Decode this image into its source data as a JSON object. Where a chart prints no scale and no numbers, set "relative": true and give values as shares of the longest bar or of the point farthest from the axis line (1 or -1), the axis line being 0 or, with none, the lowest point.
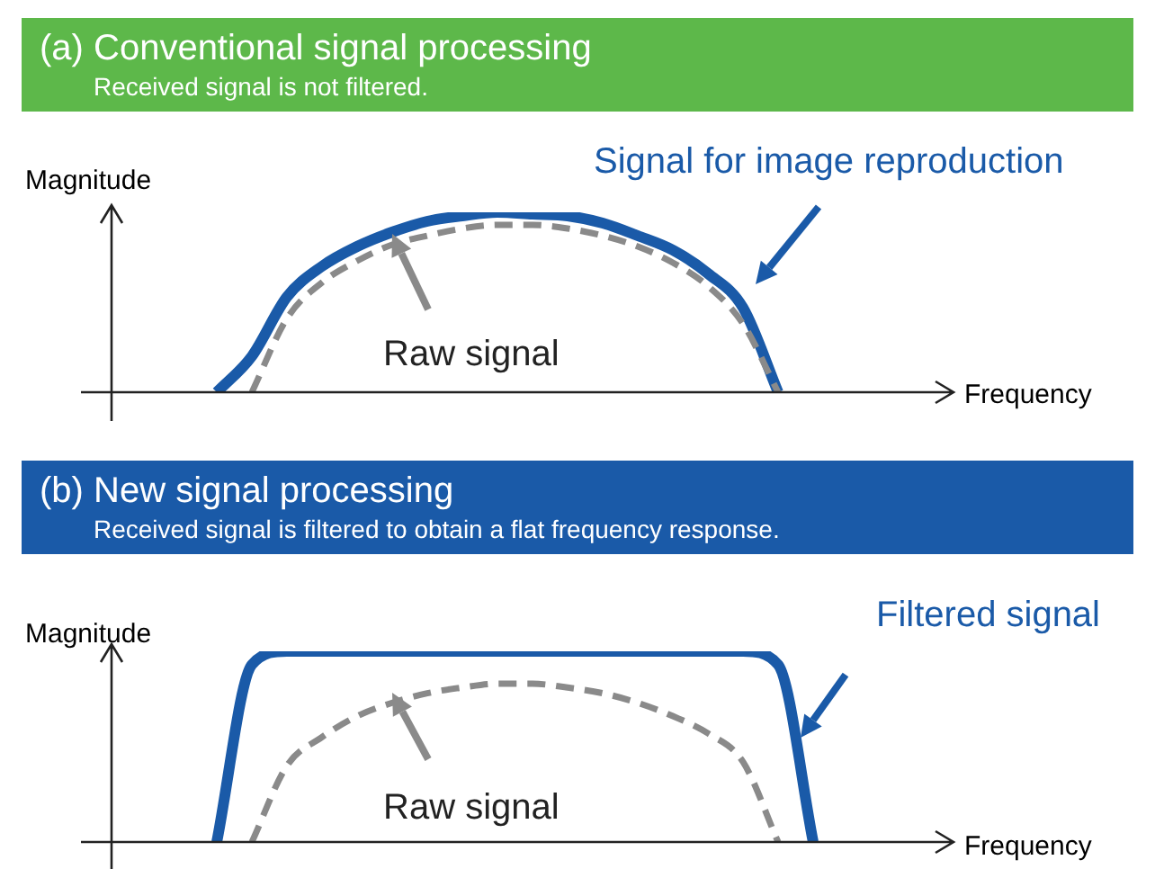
{
  "chart_data": [
    {
      "type": "line",
      "title": "(a) Conventional signal processing",
      "subtitle": "Received signal is not filtered.",
      "xlabel": "Frequency",
      "ylabel": "Magnitude",
      "relative": true,
      "marker": "none",
      "categories": [
        null,
        null,
        null,
        null,
        null,
        null,
        null,
        null,
        null,
        null,
        null,
        null,
        null,
        null,
        null,
        null,
        null,
        null,
        null,
        null,
        null,
        null,
        null,
        null,
        null
      ],
      "series": [
        {
          "name": "Signal for image reproduction",
          "color": "#1a5aa8",
          "line_style": "solid",
          "values": [
            null,
            null,
            null,
            0,
            0.2,
            0.53,
            0.7,
            0.81,
            0.89,
            0.95,
            0.98,
            1,
            0.99,
            0.98,
            0.94,
            0.87,
            0.79,
            0.66,
            0.47,
            0,
            null,
            null,
            null,
            null,
            null
          ]
        },
        {
          "name": "Raw signal",
          "color": "#8a8a8a",
          "line_style": "dashed",
          "values": [
            null,
            null,
            null,
            null,
            0,
            0.41,
            0.61,
            0.73,
            0.82,
            0.87,
            0.91,
            0.93,
            0.93,
            0.91,
            0.87,
            0.81,
            0.72,
            0.59,
            0.38,
            0,
            null,
            null,
            null,
            null,
            null
          ]
        }
      ]
    },
    {
      "type": "line",
      "title": "(b) New signal processing",
      "subtitle": "Received signal is filtered to obtain a flat frequency response.",
      "xlabel": "Frequency",
      "ylabel": "Magnitude",
      "relative": true,
      "marker": "none",
      "categories": [
        null,
        null,
        null,
        null,
        null,
        null,
        null,
        null,
        null,
        null,
        null,
        null,
        null,
        null,
        null,
        null,
        null,
        null,
        null,
        null,
        null,
        null,
        null,
        null,
        null
      ],
      "series": [
        {
          "name": "Filtered signal",
          "color": "#1a5aa8",
          "line_style": "solid",
          "values": [
            null,
            null,
            null,
            0,
            0.93,
            1,
            1,
            1,
            1,
            1,
            1,
            1,
            1,
            1,
            1,
            1,
            1,
            1,
            1,
            0.93,
            0,
            null,
            null,
            null,
            null
          ]
        },
        {
          "name": "Raw signal",
          "color": "#8a8a8a",
          "line_style": "dashed",
          "values": [
            null,
            null,
            null,
            null,
            0,
            0.4,
            0.55,
            0.66,
            0.73,
            0.78,
            0.81,
            0.83,
            0.83,
            0.81,
            0.78,
            0.73,
            0.66,
            0.57,
            0.42,
            0,
            null,
            null,
            null,
            null,
            null
          ]
        }
      ]
    }
  ]
}
